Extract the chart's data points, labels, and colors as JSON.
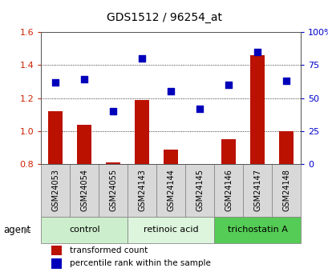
{
  "title": "GDS1512 / 96254_at",
  "categories": [
    "GSM24053",
    "GSM24054",
    "GSM24055",
    "GSM24143",
    "GSM24144",
    "GSM24145",
    "GSM24146",
    "GSM24147",
    "GSM24148"
  ],
  "red_values": [
    1.12,
    1.04,
    0.81,
    1.19,
    0.89,
    0.795,
    0.95,
    1.46,
    1.0
  ],
  "blue_pct": [
    62,
    64,
    40,
    80,
    55,
    42,
    60,
    85,
    63
  ],
  "ylim_left": [
    0.8,
    1.6
  ],
  "ylim_right": [
    0,
    100
  ],
  "yticks_left": [
    0.8,
    1.0,
    1.2,
    1.4,
    1.6
  ],
  "yticks_right": [
    0,
    25,
    50,
    75,
    100
  ],
  "ytick_labels_right": [
    "0",
    "25",
    "50",
    "75",
    "100%"
  ],
  "groups": [
    {
      "label": "control",
      "start": 0,
      "end": 3,
      "color": "#cceecc"
    },
    {
      "label": "retinoic acid",
      "start": 3,
      "end": 6,
      "color": "#ddf5dd"
    },
    {
      "label": "trichostatin A",
      "start": 6,
      "end": 9,
      "color": "#55cc55"
    }
  ],
  "red_color": "#bb1100",
  "blue_color": "#0000bb",
  "bar_base": 0.8,
  "bg_color": "#ffffff",
  "tick_color_left": "#cc2200",
  "tick_color_right": "#0000cc",
  "cell_bg": "#d8d8d8",
  "cell_border": "#888888",
  "agent_label": "agent",
  "legend_red": "transformed count",
  "legend_blue": "percentile rank within the sample"
}
